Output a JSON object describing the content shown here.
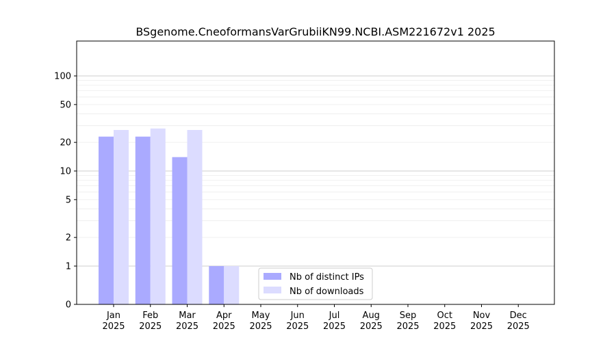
{
  "chart_data": {
    "type": "bar",
    "title": "BSgenome.CneoformansVarGrubiiKN99.NCBI.ASM221672v1 2025",
    "xlabel": "",
    "ylabel": "",
    "categories": [
      "Jan\n2025",
      "Feb\n2025",
      "Mar\n2025",
      "Apr\n2025",
      "May\n2025",
      "Jun\n2025",
      "Jul\n2025",
      "Aug\n2025",
      "Sep\n2025",
      "Oct\n2025",
      "Nov\n2025",
      "Dec\n2025"
    ],
    "series": [
      {
        "name": "Nb of distinct IPs",
        "color": "#aaaaff",
        "values": [
          23,
          23,
          14,
          1,
          0,
          0,
          0,
          0,
          0,
          0,
          0,
          0
        ]
      },
      {
        "name": "Nb of downloads",
        "color": "#dcdcff",
        "values": [
          27,
          28,
          27,
          1,
          0,
          0,
          0,
          0,
          0,
          0,
          0,
          0
        ]
      }
    ],
    "y_scale": "symlog",
    "ylim": [
      0,
      120
    ],
    "yticks": [
      0,
      1,
      2,
      5,
      10,
      20,
      50,
      100
    ],
    "grid": true,
    "legend_position": "lower-center"
  }
}
